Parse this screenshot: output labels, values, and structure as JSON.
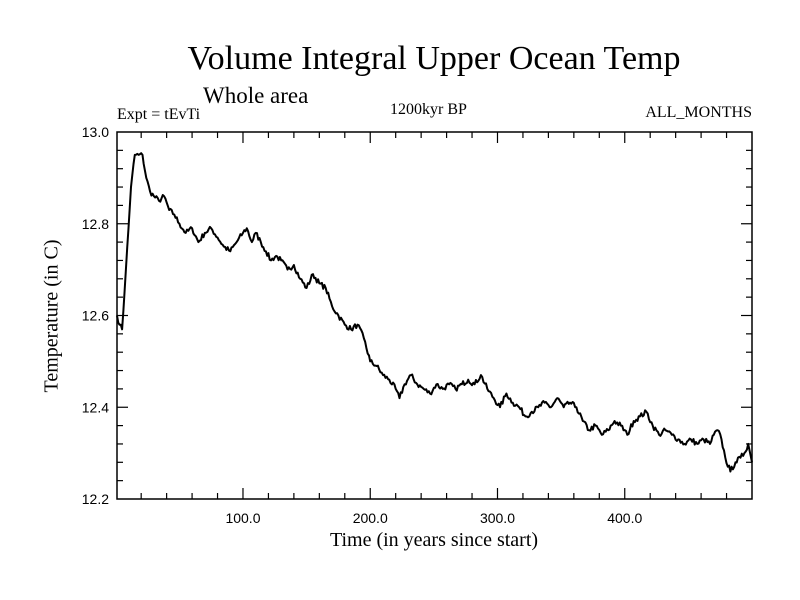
{
  "chart_data": {
    "type": "line",
    "title": "Volume Integral Upper Ocean Temp",
    "subtitle": "Whole area",
    "experiment": "Expt = tEvTi",
    "period": "1200kyr BP",
    "months": "ALL_MONTHS",
    "xlabel": "Time (in years since start)",
    "ylabel": "Temperature (in C)",
    "xlim": [
      1,
      500
    ],
    "ylim": [
      12.2,
      13.0
    ],
    "xticks_major": [
      100,
      200,
      300,
      400
    ],
    "xtick_labels": [
      "100.0",
      "200.0",
      "300.0",
      "400.0"
    ],
    "yticks_major": [
      12.2,
      12.4,
      12.6,
      12.8,
      13.0
    ],
    "ytick_labels": [
      "12.2",
      "12.4",
      "12.6",
      "12.8",
      "13.0"
    ],
    "series": [
      {
        "name": "Volume Integral Upper Ocean Temp",
        "x": [
          1,
          3,
          5,
          8,
          12,
          15,
          18,
          21,
          24,
          27,
          30,
          34,
          38,
          42,
          46,
          50,
          55,
          60,
          65,
          70,
          75,
          80,
          85,
          90,
          95,
          100,
          103,
          107,
          110,
          114,
          118,
          122,
          126,
          130,
          135,
          140,
          145,
          150,
          155,
          160,
          165,
          170,
          175,
          180,
          185,
          190,
          195,
          200,
          205,
          210,
          215,
          220,
          223,
          227,
          232,
          237,
          242,
          247,
          252,
          257,
          262,
          267,
          272,
          277,
          282,
          287,
          292,
          297,
          302,
          307,
          312,
          317,
          322,
          327,
          332,
          337,
          342,
          347,
          352,
          357,
          362,
          367,
          372,
          377,
          382,
          387,
          392,
          397,
          402,
          407,
          412,
          417,
          422,
          427,
          432,
          437,
          442,
          447,
          452,
          457,
          462,
          467,
          470,
          473,
          476,
          479,
          483,
          487,
          491,
          494,
          497,
          500
        ],
        "y": [
          12.6,
          12.58,
          12.57,
          12.7,
          12.88,
          12.95,
          12.95,
          12.95,
          12.9,
          12.87,
          12.86,
          12.85,
          12.86,
          12.83,
          12.82,
          12.8,
          12.78,
          12.79,
          12.76,
          12.78,
          12.79,
          12.77,
          12.75,
          12.74,
          12.76,
          12.78,
          12.79,
          12.76,
          12.78,
          12.76,
          12.74,
          12.72,
          12.73,
          12.72,
          12.7,
          12.71,
          12.68,
          12.66,
          12.69,
          12.67,
          12.66,
          12.62,
          12.6,
          12.58,
          12.57,
          12.58,
          12.55,
          12.5,
          12.49,
          12.47,
          12.46,
          12.44,
          12.42,
          12.45,
          12.47,
          12.45,
          12.44,
          12.43,
          12.45,
          12.44,
          12.45,
          12.44,
          12.45,
          12.46,
          12.45,
          12.47,
          12.44,
          12.42,
          12.4,
          12.43,
          12.41,
          12.4,
          12.38,
          12.39,
          12.4,
          12.41,
          12.4,
          12.42,
          12.4,
          12.41,
          12.4,
          12.37,
          12.35,
          12.36,
          12.34,
          12.35,
          12.37,
          12.36,
          12.34,
          12.37,
          12.38,
          12.39,
          12.36,
          12.34,
          12.35,
          12.34,
          12.33,
          12.32,
          12.33,
          12.32,
          12.33,
          12.32,
          12.34,
          12.35,
          12.33,
          12.29,
          12.26,
          12.28,
          12.29,
          12.3,
          12.32,
          12.28
        ]
      }
    ]
  }
}
